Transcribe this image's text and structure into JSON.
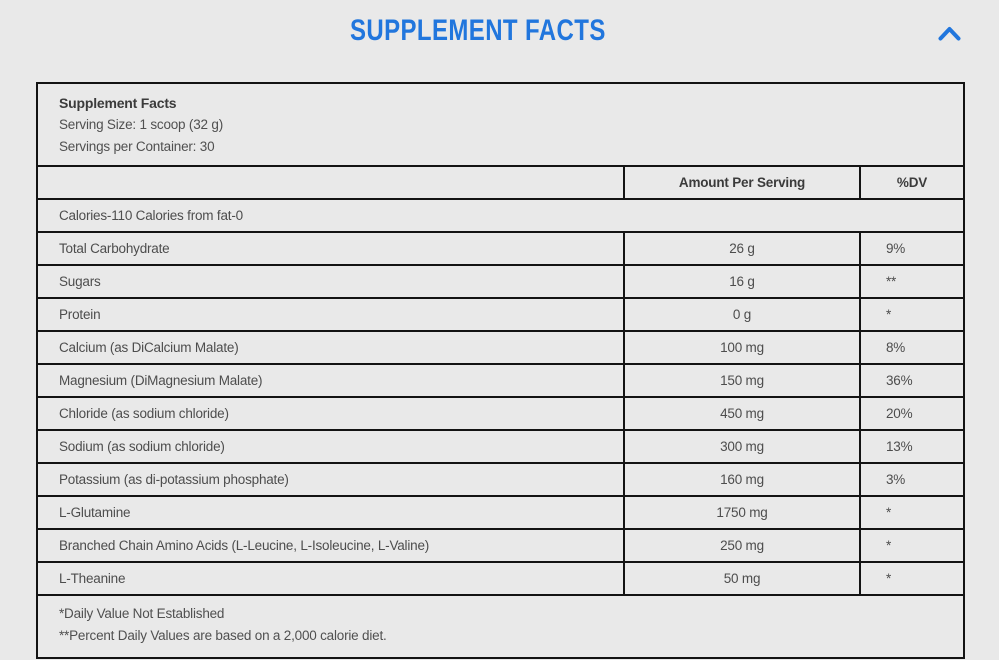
{
  "colors": {
    "accent_blue": "#2176dd",
    "background": "#e9e9e9",
    "table_border": "#131313",
    "body_text": "#4d4d4d"
  },
  "accordion": {
    "title": "SUPPLEMENT FACTS",
    "collapse_icon": "chevron-up-icon"
  },
  "panel": {
    "info": {
      "title": "Supplement Facts",
      "serving_size": "Serving Size: 1 scoop (32 g)",
      "servings_per_container": "Servings per Container: 30"
    },
    "columns": {
      "amount": "Amount Per Serving",
      "dv": "%DV"
    },
    "calories_row": "Calories-110 Calories from fat-0",
    "rows": [
      {
        "name": "Total Carbohydrate",
        "amount": "26 g",
        "dv": "9%"
      },
      {
        "name": "Sugars",
        "amount": "16 g",
        "dv": "**"
      },
      {
        "name": "Protein",
        "amount": "0 g",
        "dv": "*"
      },
      {
        "name": "Calcium (as DiCalcium Malate)",
        "amount": "100 mg",
        "dv": "8%"
      },
      {
        "name": "Magnesium (DiMagnesium Malate)",
        "amount": "150 mg",
        "dv": "36%"
      },
      {
        "name": "Chloride (as sodium chloride)",
        "amount": "450 mg",
        "dv": "20%"
      },
      {
        "name": "Sodium (as sodium chloride)",
        "amount": "300 mg",
        "dv": "13%"
      },
      {
        "name": "Potassium (as di-potassium phosphate)",
        "amount": "160 mg",
        "dv": "3%"
      },
      {
        "name": "L-Glutamine",
        "amount": "1750 mg",
        "dv": "*"
      },
      {
        "name": "Branched Chain Amino Acids (L-Leucine, L-Isoleucine, L-Valine)",
        "amount": "250 mg",
        "dv": "*"
      },
      {
        "name": "L-Theanine",
        "amount": "50 mg",
        "dv": "*"
      }
    ],
    "footnotes": [
      "*Daily Value Not Established",
      "**Percent Daily Values are based on a 2,000 calorie diet."
    ]
  }
}
